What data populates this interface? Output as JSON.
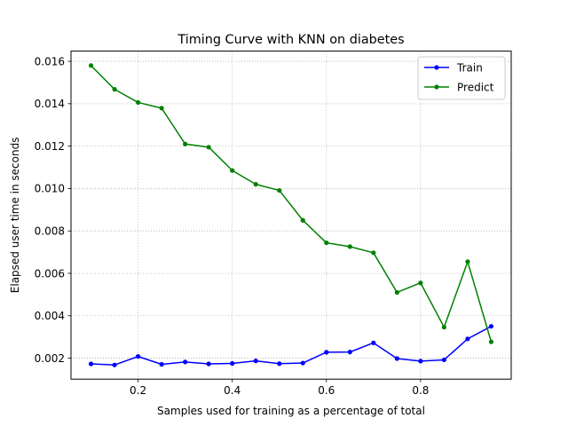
{
  "chart_data": {
    "type": "line",
    "title": "Timing Curve with KNN on diabetes",
    "xlabel": "Samples used for training as a percentage of total",
    "ylabel": "Elapsed user time in seconds",
    "xlim": [
      0.0575,
      0.9925
    ],
    "ylim": [
      0.00101,
      0.01648
    ],
    "xticks": [
      0.2,
      0.4,
      0.6,
      0.8
    ],
    "xtick_labels": [
      "0.2",
      "0.4",
      "0.6",
      "0.8"
    ],
    "yticks": [
      0.002,
      0.004,
      0.006,
      0.008,
      0.01,
      0.012,
      0.014,
      0.016
    ],
    "ytick_labels": [
      "0.002",
      "0.004",
      "0.006",
      "0.008",
      "0.010",
      "0.012",
      "0.014",
      "0.016"
    ],
    "grid": true,
    "legend_position": "top-right",
    "x": [
      0.1,
      0.15,
      0.2,
      0.25,
      0.3,
      0.35,
      0.4,
      0.45,
      0.5,
      0.55,
      0.6,
      0.65,
      0.7,
      0.75,
      0.8,
      0.85,
      0.9,
      0.95
    ],
    "series": [
      {
        "name": "Train",
        "color": "#0000ff",
        "values": [
          0.00173,
          0.00168,
          0.00208,
          0.00171,
          0.00182,
          0.00173,
          0.00175,
          0.00187,
          0.00174,
          0.00177,
          0.00228,
          0.00229,
          0.00272,
          0.00198,
          0.00186,
          0.00192,
          0.00291,
          0.0035
        ]
      },
      {
        "name": "Predict",
        "color": "#008000",
        "values": [
          0.0158,
          0.01468,
          0.01406,
          0.01379,
          0.0121,
          0.01195,
          0.01085,
          0.0102,
          0.00991,
          0.0085,
          0.00744,
          0.00726,
          0.00697,
          0.0051,
          0.00555,
          0.00346,
          0.00655,
          0.00277
        ]
      }
    ]
  }
}
